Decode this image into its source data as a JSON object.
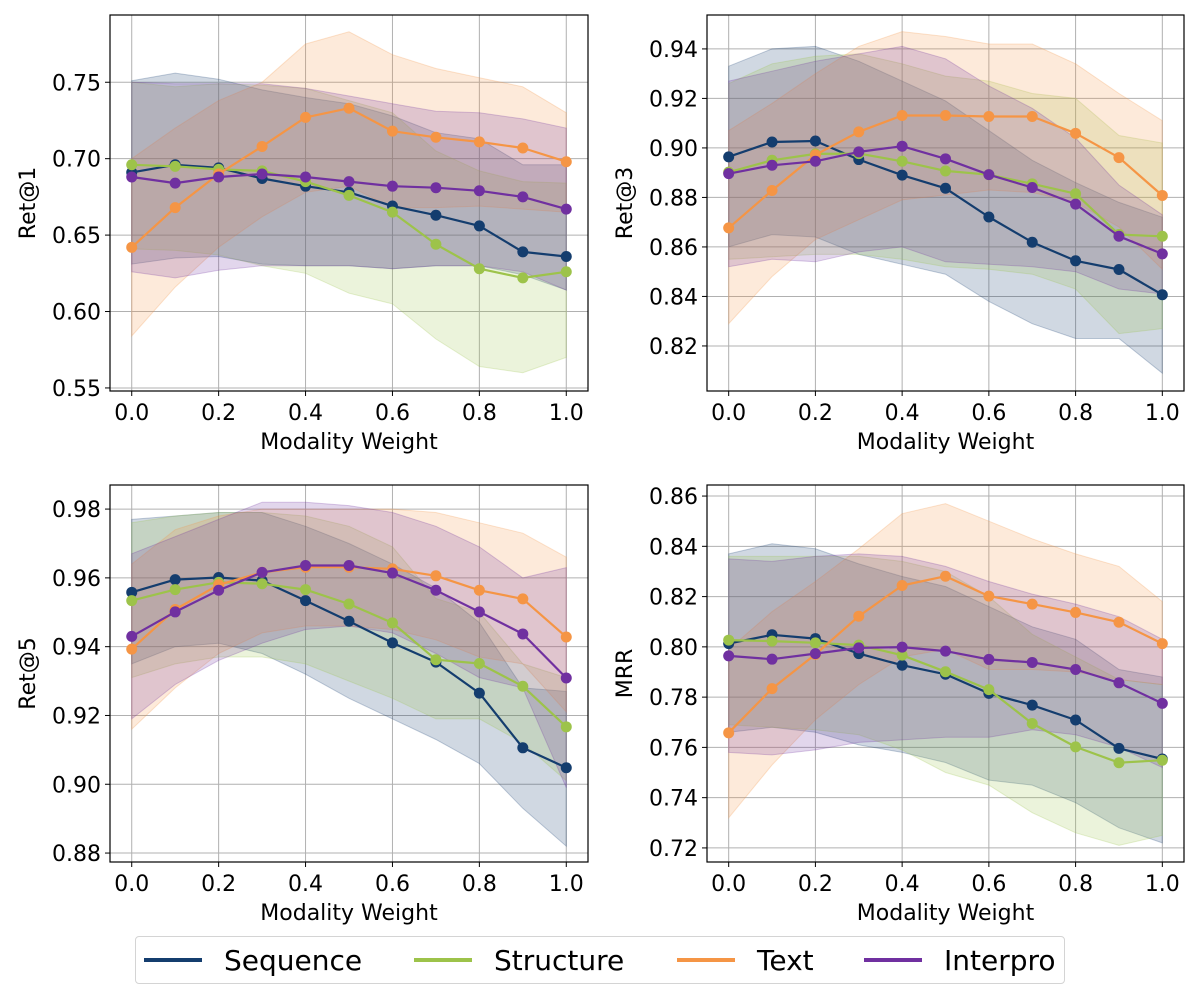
{
  "chart_data": [
    {
      "type": "line",
      "ylabel": "Ret@1",
      "xlabel": "Modality Weight",
      "ylim": [
        0.548,
        0.794
      ],
      "yticks": [
        0.55,
        0.6,
        0.65,
        0.7,
        0.75
      ],
      "ytick_labels": [
        "0.55",
        "0.60",
        "0.65",
        "0.70",
        "0.75"
      ],
      "grid": true,
      "series": [
        {
          "name": "Sequence",
          "values": [
            0.691,
            0.696,
            0.694,
            0.687,
            0.682,
            0.678,
            0.669,
            0.663,
            0.656,
            0.639,
            0.636
          ],
          "upper": [
            0.751,
            0.756,
            0.752,
            0.745,
            0.74,
            0.736,
            0.728,
            0.717,
            0.713,
            0.696,
            0.696
          ],
          "lower": [
            0.631,
            0.635,
            0.636,
            0.631,
            0.63,
            0.63,
            0.628,
            0.63,
            0.63,
            0.624,
            0.614
          ]
        },
        {
          "name": "Structure",
          "values": [
            0.696,
            0.695,
            0.693,
            0.692,
            0.685,
            0.676,
            0.665,
            0.644,
            0.628,
            0.622,
            0.626
          ],
          "upper": [
            0.75,
            0.747,
            0.749,
            0.748,
            0.746,
            0.738,
            0.73,
            0.705,
            0.692,
            0.685,
            0.684
          ],
          "lower": [
            0.641,
            0.64,
            0.637,
            0.63,
            0.625,
            0.612,
            0.605,
            0.582,
            0.564,
            0.56,
            0.57
          ]
        },
        {
          "name": "Text",
          "values": [
            0.642,
            0.668,
            0.69,
            0.708,
            0.727,
            0.733,
            0.718,
            0.714,
            0.711,
            0.707,
            0.698
          ],
          "upper": [
            0.7,
            0.72,
            0.738,
            0.75,
            0.775,
            0.783,
            0.768,
            0.759,
            0.753,
            0.747,
            0.73
          ],
          "lower": [
            0.584,
            0.616,
            0.642,
            0.662,
            0.678,
            0.682,
            0.668,
            0.668,
            0.669,
            0.667,
            0.665
          ]
        },
        {
          "name": "Interpro",
          "values": [
            0.688,
            0.684,
            0.688,
            0.69,
            0.688,
            0.685,
            0.682,
            0.681,
            0.679,
            0.675,
            0.667
          ],
          "upper": [
            0.75,
            0.749,
            0.749,
            0.749,
            0.746,
            0.741,
            0.736,
            0.731,
            0.73,
            0.726,
            0.72
          ],
          "lower": [
            0.626,
            0.622,
            0.627,
            0.63,
            0.63,
            0.63,
            0.628,
            0.63,
            0.63,
            0.626,
            0.614
          ]
        }
      ]
    },
    {
      "type": "line",
      "ylabel": "Ret@3",
      "xlabel": "Modality Weight",
      "ylim": [
        0.8018,
        0.9537
      ],
      "yticks": [
        0.82,
        0.84,
        0.86,
        0.88,
        0.9,
        0.92,
        0.94
      ],
      "ytick_labels": [
        "0.82",
        "0.84",
        "0.86",
        "0.88",
        "0.90",
        "0.92",
        "0.94"
      ],
      "grid": true,
      "series": [
        {
          "name": "Sequence",
          "values": [
            0.8964,
            0.9024,
            0.9028,
            0.8953,
            0.889,
            0.8837,
            0.8721,
            0.8619,
            0.8544,
            0.8509,
            0.8407
          ],
          "upper": [
            0.933,
            0.94,
            0.941,
            0.935,
            0.927,
            0.919,
            0.907,
            0.895,
            0.886,
            0.878,
            0.872
          ],
          "lower": [
            0.86,
            0.865,
            0.864,
            0.857,
            0.853,
            0.849,
            0.838,
            0.829,
            0.823,
            0.823,
            0.809
          ]
        },
        {
          "name": "Structure",
          "values": [
            0.8902,
            0.895,
            0.8976,
            0.8977,
            0.8946,
            0.8907,
            0.8892,
            0.8855,
            0.8815,
            0.865,
            0.8643
          ],
          "upper": [
            0.926,
            0.934,
            0.937,
            0.938,
            0.934,
            0.929,
            0.927,
            0.922,
            0.92,
            0.905,
            0.902
          ],
          "lower": [
            0.855,
            0.856,
            0.857,
            0.857,
            0.855,
            0.852,
            0.851,
            0.849,
            0.843,
            0.825,
            0.827
          ]
        },
        {
          "name": "Text",
          "values": [
            0.8677,
            0.8828,
            0.8972,
            0.9065,
            0.9131,
            0.9131,
            0.9127,
            0.9127,
            0.9059,
            0.8961,
            0.8808
          ],
          "upper": [
            0.907,
            0.918,
            0.93,
            0.941,
            0.947,
            0.945,
            0.942,
            0.942,
            0.934,
            0.922,
            0.911
          ],
          "lower": [
            0.829,
            0.848,
            0.863,
            0.871,
            0.879,
            0.881,
            0.883,
            0.882,
            0.878,
            0.868,
            0.851
          ]
        },
        {
          "name": "Interpro",
          "values": [
            0.8896,
            0.893,
            0.8946,
            0.8984,
            0.9007,
            0.8956,
            0.8892,
            0.884,
            0.8773,
            0.8643,
            0.8572
          ],
          "upper": [
            0.927,
            0.931,
            0.935,
            0.938,
            0.941,
            0.936,
            0.925,
            0.916,
            0.904,
            0.885,
            0.873
          ],
          "lower": [
            0.852,
            0.855,
            0.854,
            0.858,
            0.86,
            0.854,
            0.853,
            0.852,
            0.85,
            0.843,
            0.841
          ]
        }
      ]
    },
    {
      "type": "line",
      "ylabel": "Ret@5",
      "xlabel": "Modality Weight",
      "ylim": [
        0.8774,
        0.987
      ],
      "yticks": [
        0.88,
        0.9,
        0.92,
        0.94,
        0.96,
        0.98
      ],
      "ytick_labels": [
        "0.88",
        "0.90",
        "0.92",
        "0.94",
        "0.96",
        "0.98"
      ],
      "grid": true,
      "series": [
        {
          "name": "Sequence",
          "values": [
            0.9558,
            0.9595,
            0.9601,
            0.9592,
            0.9534,
            0.9474,
            0.9411,
            0.9355,
            0.9265,
            0.9106,
            0.9048
          ],
          "upper": [
            0.977,
            0.978,
            0.979,
            0.979,
            0.975,
            0.97,
            0.964,
            0.957,
            0.947,
            0.928,
            0.927
          ],
          "lower": [
            0.935,
            0.94,
            0.941,
            0.938,
            0.932,
            0.925,
            0.919,
            0.913,
            0.906,
            0.893,
            0.882
          ]
        },
        {
          "name": "Structure",
          "values": [
            0.9534,
            0.9566,
            0.9587,
            0.9583,
            0.9566,
            0.9524,
            0.9469,
            0.9362,
            0.9351,
            0.9285,
            0.9167
          ],
          "upper": [
            0.976,
            0.978,
            0.979,
            0.979,
            0.978,
            0.975,
            0.969,
            0.954,
            0.95,
            0.935,
            0.931
          ],
          "lower": [
            0.931,
            0.935,
            0.937,
            0.937,
            0.935,
            0.93,
            0.925,
            0.919,
            0.919,
            0.912,
            0.901
          ]
        },
        {
          "name": "Text",
          "values": [
            0.9393,
            0.9508,
            0.958,
            0.9616,
            0.9631,
            0.9631,
            0.9626,
            0.9606,
            0.9564,
            0.9539,
            0.9428
          ],
          "upper": [
            0.964,
            0.974,
            0.978,
            0.98,
            0.98,
            0.98,
            0.98,
            0.979,
            0.976,
            0.973,
            0.966
          ],
          "lower": [
            0.916,
            0.928,
            0.938,
            0.944,
            0.946,
            0.946,
            0.945,
            0.942,
            0.937,
            0.935,
            0.921
          ]
        },
        {
          "name": "Interpro",
          "values": [
            0.943,
            0.9501,
            0.9564,
            0.9616,
            0.9636,
            0.9636,
            0.9614,
            0.9564,
            0.9501,
            0.9437,
            0.9309
          ],
          "upper": [
            0.967,
            0.972,
            0.977,
            0.982,
            0.982,
            0.981,
            0.979,
            0.975,
            0.969,
            0.96,
            0.963
          ],
          "lower": [
            0.919,
            0.929,
            0.936,
            0.941,
            0.945,
            0.946,
            0.944,
            0.938,
            0.931,
            0.928,
            0.899
          ]
        }
      ]
    },
    {
      "type": "line",
      "ylabel": "MRR",
      "xlabel": "Modality Weight",
      "ylim": [
        0.7144,
        0.8644
      ],
      "yticks": [
        0.72,
        0.74,
        0.76,
        0.78,
        0.8,
        0.82,
        0.84,
        0.86
      ],
      "ytick_labels": [
        "0.72",
        "0.74",
        "0.76",
        "0.78",
        "0.80",
        "0.82",
        "0.84",
        "0.86"
      ],
      "grid": true,
      "series": [
        {
          "name": "Sequence",
          "values": [
            0.8013,
            0.8048,
            0.8033,
            0.7973,
            0.7927,
            0.7891,
            0.7815,
            0.7768,
            0.7709,
            0.7596,
            0.7554
          ],
          "upper": [
            0.837,
            0.841,
            0.839,
            0.833,
            0.828,
            0.824,
            0.816,
            0.808,
            0.803,
            0.791,
            0.788
          ],
          "lower": [
            0.766,
            0.768,
            0.766,
            0.761,
            0.758,
            0.754,
            0.747,
            0.745,
            0.738,
            0.728,
            0.722
          ]
        },
        {
          "name": "Structure",
          "values": [
            0.8027,
            0.8023,
            0.8016,
            0.8007,
            0.7967,
            0.7901,
            0.783,
            0.7695,
            0.7602,
            0.7539,
            0.7549
          ],
          "upper": [
            0.836,
            0.836,
            0.836,
            0.836,
            0.834,
            0.83,
            0.82,
            0.805,
            0.796,
            0.787,
            0.785
          ],
          "lower": [
            0.769,
            0.768,
            0.767,
            0.765,
            0.759,
            0.75,
            0.745,
            0.734,
            0.726,
            0.721,
            0.725
          ]
        },
        {
          "name": "Text",
          "values": [
            0.7658,
            0.7834,
            0.797,
            0.8122,
            0.8244,
            0.8281,
            0.8202,
            0.817,
            0.8137,
            0.8098,
            0.8013
          ],
          "upper": [
            0.799,
            0.814,
            0.826,
            0.839,
            0.853,
            0.857,
            0.85,
            0.843,
            0.837,
            0.832,
            0.818
          ],
          "lower": [
            0.732,
            0.753,
            0.771,
            0.785,
            0.796,
            0.799,
            0.791,
            0.791,
            0.79,
            0.787,
            0.785
          ]
        },
        {
          "name": "Interpro",
          "values": [
            0.7964,
            0.7951,
            0.7973,
            0.7996,
            0.7999,
            0.7983,
            0.795,
            0.7938,
            0.791,
            0.7857,
            0.7775
          ],
          "upper": [
            0.835,
            0.834,
            0.836,
            0.837,
            0.836,
            0.832,
            0.826,
            0.821,
            0.817,
            0.812,
            0.803
          ],
          "lower": [
            0.758,
            0.757,
            0.759,
            0.762,
            0.763,
            0.764,
            0.764,
            0.767,
            0.765,
            0.76,
            0.752
          ]
        }
      ]
    }
  ],
  "x": [
    0.0,
    0.1,
    0.2,
    0.3,
    0.4,
    0.5,
    0.6,
    0.7,
    0.8,
    0.9,
    1.0
  ],
  "xticks": [
    0.0,
    0.2,
    0.4,
    0.6,
    0.8,
    1.0
  ],
  "xtick_labels": [
    "0.0",
    "0.2",
    "0.4",
    "0.6",
    "0.8",
    "1.0"
  ],
  "xlim": [
    -0.05,
    1.05
  ],
  "colors": {
    "Sequence": "#143d6e",
    "Structure": "#9dc34a",
    "Text": "#f59545",
    "Interpro": "#7030a0"
  },
  "legend": {
    "position": "bottom-center",
    "items": [
      {
        "label": "Sequence",
        "color": "#143d6e"
      },
      {
        "label": "Structure",
        "color": "#9dc34a"
      },
      {
        "label": "Text",
        "color": "#f59545"
      },
      {
        "label": "Interpro",
        "color": "#7030a0"
      }
    ]
  }
}
